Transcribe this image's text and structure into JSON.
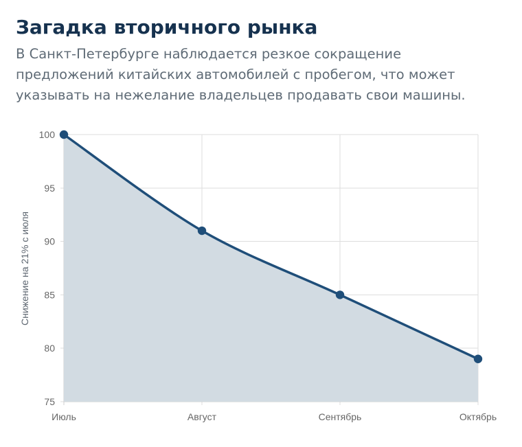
{
  "header": {
    "title": "Загадка вторичного рынка",
    "subtitle": "В Санкт-Петербурге наблюдается резкое сокращение предложений китайских автомобилей с пробегом, что может указывать на нежелание владельцев продавать свои машины."
  },
  "chart_data": {
    "type": "area",
    "categories": [
      "Июль",
      "Август",
      "Сентябрь",
      "Октябрь"
    ],
    "series": [
      {
        "values": [
          100,
          91,
          85,
          79
        ]
      }
    ],
    "title": "",
    "xlabel": "",
    "ylabel": "Снижение на 21% с июля",
    "ylim": [
      75,
      100
    ],
    "yticks": [
      75,
      80,
      85,
      90,
      95,
      100
    ],
    "grid": true,
    "legend": "none",
    "colors": {
      "line": "#1f4e79",
      "fill": "#d2dbe2",
      "point": "#1f4e79"
    }
  }
}
